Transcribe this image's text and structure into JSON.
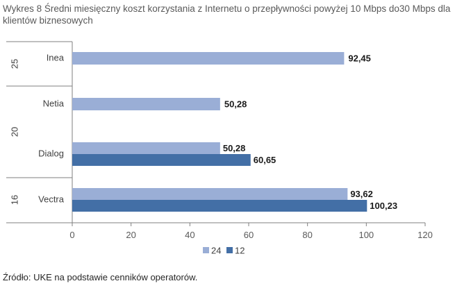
{
  "title": "Wykres 8 Średni miesięczny koszt korzystania z Internetu o przepływności powyżej 10 Mbps do30 Mbps dla klientów biznesowych",
  "source": "Źródło: UKE na podstawie cenników operatorów.",
  "colors": {
    "series_24": "#9aaed6",
    "series_12": "#436fa6",
    "axis": "#7f7f7f"
  },
  "chart_data": {
    "type": "bar",
    "orientation": "horizontal",
    "xlim": [
      0,
      120
    ],
    "x_ticks": [
      "0",
      "20",
      "40",
      "60",
      "80",
      "100",
      "120"
    ],
    "groups": [
      {
        "label": "25",
        "categories": [
          "Inea"
        ]
      },
      {
        "label": "20",
        "categories": [
          "Netia",
          "Dialog"
        ]
      },
      {
        "label": "16",
        "categories": [
          "Vectra"
        ]
      }
    ],
    "categories": [
      "Inea",
      "Netia",
      "Dialog",
      "Vectra"
    ],
    "series": [
      {
        "name": "24",
        "values": [
          92.45,
          50.28,
          50.28,
          93.62
        ],
        "labels": [
          "92,45",
          "50,28",
          "50,28",
          "93,62"
        ]
      },
      {
        "name": "12",
        "values": [
          null,
          null,
          60.65,
          100.23
        ],
        "labels": [
          "",
          "",
          "60,65",
          "100,23"
        ]
      }
    ],
    "legend": {
      "position": "bottom",
      "entries": [
        "24",
        "12"
      ]
    }
  }
}
